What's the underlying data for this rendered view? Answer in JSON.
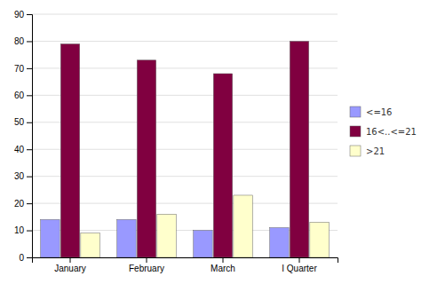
{
  "chart_data": {
    "type": "bar",
    "categories": [
      "January",
      "February",
      "March",
      "I Quarter"
    ],
    "series": [
      {
        "name": "<=16",
        "values": [
          14,
          14,
          10,
          11
        ],
        "color": "#9999FF"
      },
      {
        "name": "16<..<=21",
        "values": [
          79,
          73,
          68,
          80
        ],
        "color": "#800040"
      },
      {
        "name": ">21",
        "values": [
          9,
          16,
          23,
          13
        ],
        "color": "#FFFFCC"
      }
    ],
    "ylim": [
      0,
      90
    ],
    "yticks": [
      0,
      10,
      20,
      30,
      40,
      50,
      60,
      70,
      80,
      90
    ],
    "grid": true,
    "legend": "right"
  }
}
